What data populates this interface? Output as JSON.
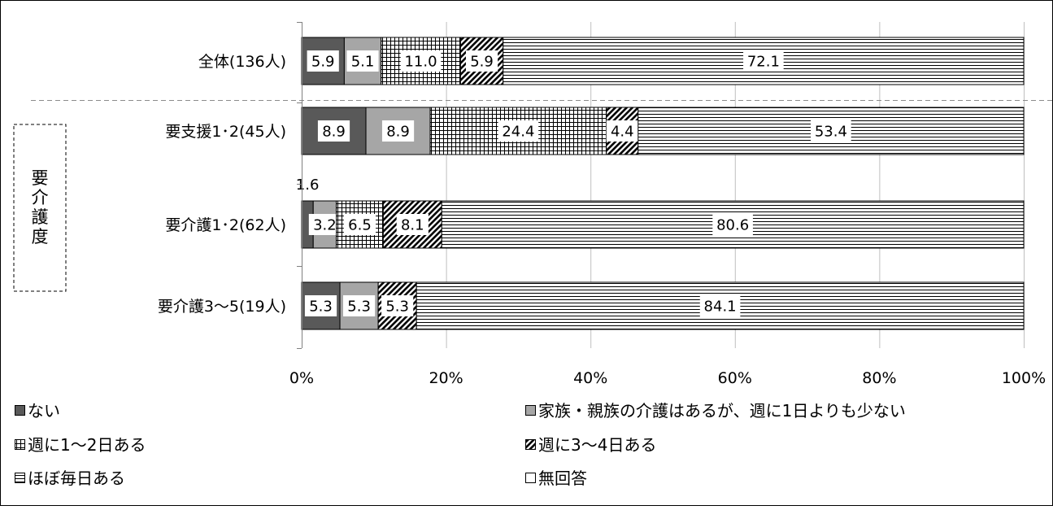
{
  "chart_data": {
    "type": "bar",
    "orientation": "horizontal",
    "stacked": "percent",
    "categories": [
      "全体(136人)",
      "要支援1･2(45人)",
      "要介護1･2(62人)",
      "要介護3～5(19人)"
    ],
    "group_label": "要介護度",
    "series": [
      {
        "name": "ない",
        "values": [
          5.9,
          8.9,
          1.6,
          5.3
        ],
        "color": "#595959",
        "pattern": "solid-dark"
      },
      {
        "name": "家族・親族の介護はあるが、週に1日よりも少ない",
        "values": [
          5.1,
          8.9,
          3.2,
          5.3
        ],
        "color": "#a6a6a6",
        "pattern": "solid-gray"
      },
      {
        "name": "週に1～2日ある",
        "values": [
          11.0,
          24.4,
          6.5,
          0
        ],
        "color": "#000000",
        "pattern": "grid"
      },
      {
        "name": "週に3～4日ある",
        "values": [
          5.9,
          4.4,
          8.1,
          5.3
        ],
        "color": "#000000",
        "pattern": "diagonal"
      },
      {
        "name": "ほぼ毎日ある",
        "values": [
          72.1,
          53.4,
          80.6,
          84.1
        ],
        "color": "#000000",
        "pattern": "horizontal"
      },
      {
        "name": "無回答",
        "values": [
          0,
          0,
          0,
          0
        ],
        "color": "#ffffff",
        "pattern": "none"
      }
    ],
    "data_labels": [
      [
        "5.9",
        "5.1",
        "11.0",
        "5.9",
        "72.1",
        ""
      ],
      [
        "8.9",
        "8.9",
        "24.4",
        "4.4",
        "53.4",
        ""
      ],
      [
        "1.6",
        "3.2",
        "6.5",
        "8.1",
        "80.6",
        ""
      ],
      [
        "5.3",
        "5.3",
        "",
        "5.3",
        "84.1",
        ""
      ]
    ],
    "xticks": [
      "0%",
      "20%",
      "40%",
      "60%",
      "80%",
      "100%"
    ],
    "xlim": [
      0,
      100
    ],
    "grid": true,
    "legend_position": "bottom"
  }
}
